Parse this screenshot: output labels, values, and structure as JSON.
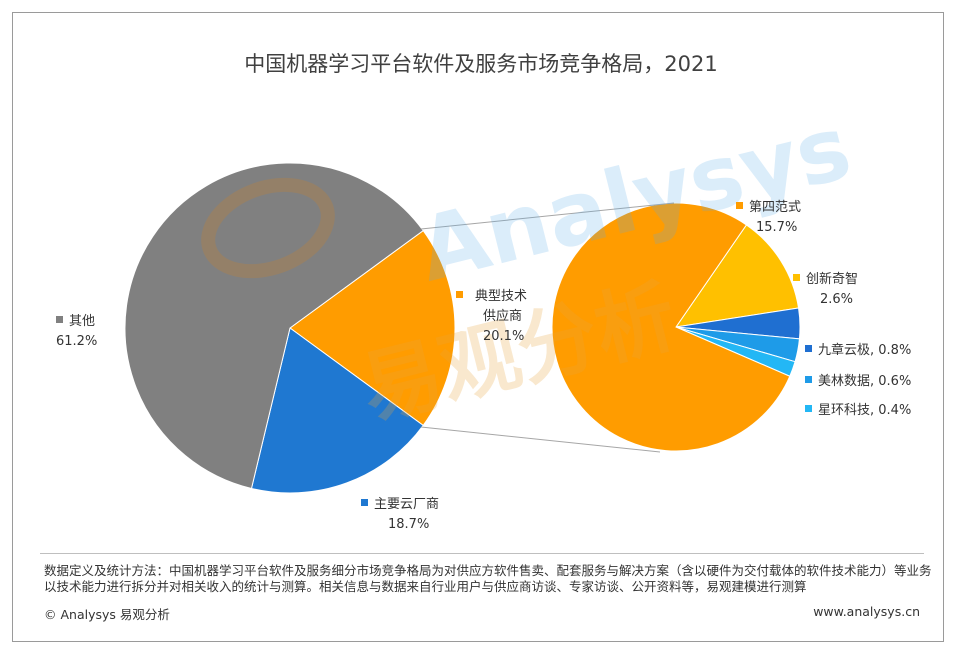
{
  "chart_data": [
    {
      "type": "pie",
      "title": "中国机器学习平台软件及服务市场竞争格局，2021",
      "slices": [
        {
          "name": "其他",
          "value": 61.2,
          "label": "61.2%",
          "color": "#808080"
        },
        {
          "name": "典型技术供应商",
          "value": 20.1,
          "label": "20.1%",
          "color": "#FF9C00"
        },
        {
          "name": "主要云厂商",
          "value": 18.7,
          "label": "18.7%",
          "color": "#1F78D1"
        }
      ]
    },
    {
      "type": "pie",
      "slices": [
        {
          "name": "第四范式",
          "value": 15.7,
          "label": "15.7%",
          "color": "#FF9C00"
        },
        {
          "name": "创新奇智",
          "value": 2.6,
          "label": "2.6%",
          "color": "#FFC000"
        },
        {
          "name": "九章云极",
          "value": 0.8,
          "label": "0.8%",
          "color": "#1F6FD1"
        },
        {
          "name": "美林数据",
          "value": 0.6,
          "label": "0.6%",
          "color": "#1E9BE8"
        },
        {
          "name": "星环科技",
          "value": 0.4,
          "label": "0.4%",
          "color": "#23B7F5"
        }
      ]
    }
  ],
  "labels": {
    "other_name": "其他",
    "other_pct": "61.2%",
    "tech_name_1": "典型技术",
    "tech_name_2": "供应商",
    "tech_pct": "20.1%",
    "cloud_name": "主要云厂商",
    "cloud_pct": "18.7%",
    "s1_name": "第四范式",
    "s1_pct": "15.7%",
    "s2_name": "创新奇智",
    "s2_pct": "2.6%",
    "s3": "九章云极, 0.8%",
    "s4": "美林数据, 0.6%",
    "s5": "星环科技, 0.4%"
  },
  "watermark": {
    "en": "Analysys",
    "zh": "易观分析"
  },
  "note": "数据定义及统计方法：中国机器学习平台软件及服务细分市场竞争格局为对供应方软件售卖、配套服务与解决方案（含以硬件为交付载体的软件技术能力）等业务以技术能力进行拆分并对相关收入的统计与测算。相关信息与数据来自行业用户与供应商访谈、专家访谈、公开资料等，易观建模进行测算",
  "footer": {
    "left": "© Analysys 易观分析",
    "right": "www.analysys.cn"
  }
}
